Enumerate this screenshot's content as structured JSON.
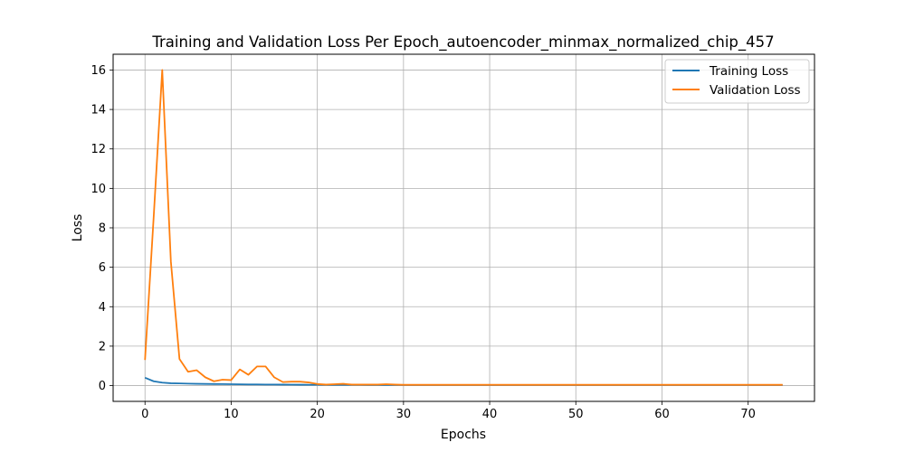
{
  "chart_data": {
    "type": "line",
    "title": "Training and Validation Loss Per Epoch_autoencoder_minmax_normalized_chip_457",
    "xlabel": "Epochs",
    "ylabel": "Loss",
    "xlim": [
      -3.7,
      77.7
    ],
    "ylim": [
      -0.8,
      16.8
    ],
    "xticks": [
      0,
      10,
      20,
      30,
      40,
      50,
      60,
      70
    ],
    "yticks": [
      0,
      2,
      4,
      6,
      8,
      10,
      12,
      14,
      16
    ],
    "grid": true,
    "legend_position": "top-right",
    "series": [
      {
        "name": "Training Loss",
        "color": "#1f77b4",
        "x": [
          0,
          1,
          2,
          3,
          4,
          5,
          6,
          7,
          8,
          9,
          10,
          11,
          12,
          13,
          14,
          15,
          16,
          17,
          18,
          19,
          20,
          21,
          22,
          23,
          24,
          25,
          26,
          27,
          28,
          29,
          30,
          31,
          32,
          33,
          34,
          35,
          36,
          37,
          38,
          39,
          40,
          41,
          42,
          43,
          44,
          45,
          46,
          47,
          48,
          49,
          50,
          51,
          52,
          53,
          54,
          55,
          56,
          57,
          58,
          59,
          60,
          61,
          62,
          63,
          64,
          65,
          66,
          67,
          68,
          69,
          70,
          71,
          72,
          73,
          74
        ],
        "values": [
          0.4,
          0.22,
          0.15,
          0.12,
          0.11,
          0.1,
          0.09,
          0.085,
          0.08,
          0.075,
          0.07,
          0.065,
          0.06,
          0.058,
          0.055,
          0.052,
          0.05,
          0.048,
          0.046,
          0.044,
          0.042,
          0.04,
          0.038,
          0.037,
          0.036,
          0.035,
          0.034,
          0.033,
          0.032,
          0.031,
          0.03,
          0.03,
          0.03,
          0.03,
          0.03,
          0.03,
          0.03,
          0.03,
          0.03,
          0.03,
          0.03,
          0.03,
          0.03,
          0.03,
          0.03,
          0.03,
          0.03,
          0.03,
          0.03,
          0.03,
          0.03,
          0.03,
          0.03,
          0.03,
          0.03,
          0.03,
          0.03,
          0.03,
          0.03,
          0.03,
          0.03,
          0.03,
          0.03,
          0.03,
          0.03,
          0.03,
          0.03,
          0.03,
          0.03,
          0.03,
          0.03,
          0.03,
          0.03,
          0.03,
          0.03
        ]
      },
      {
        "name": "Validation Loss",
        "color": "#ff7f0e",
        "x": [
          0,
          1,
          2,
          3,
          4,
          5,
          6,
          7,
          8,
          9,
          10,
          11,
          12,
          13,
          14,
          15,
          16,
          17,
          18,
          19,
          20,
          21,
          22,
          23,
          24,
          25,
          26,
          27,
          28,
          29,
          30,
          31,
          32,
          33,
          34,
          35,
          36,
          37,
          38,
          39,
          40,
          41,
          42,
          43,
          44,
          45,
          46,
          47,
          48,
          49,
          50,
          51,
          52,
          53,
          54,
          55,
          56,
          57,
          58,
          59,
          60,
          61,
          62,
          63,
          64,
          65,
          66,
          67,
          68,
          69,
          70,
          71,
          72,
          73,
          74
        ],
        "values": [
          1.3,
          8.5,
          16.0,
          6.3,
          1.35,
          0.7,
          0.78,
          0.42,
          0.22,
          0.3,
          0.28,
          0.82,
          0.55,
          0.97,
          0.97,
          0.42,
          0.18,
          0.2,
          0.2,
          0.16,
          0.08,
          0.05,
          0.07,
          0.09,
          0.05,
          0.05,
          0.05,
          0.05,
          0.07,
          0.05,
          0.04,
          0.04,
          0.04,
          0.04,
          0.04,
          0.04,
          0.04,
          0.04,
          0.04,
          0.04,
          0.04,
          0.04,
          0.04,
          0.04,
          0.04,
          0.04,
          0.04,
          0.04,
          0.04,
          0.04,
          0.04,
          0.04,
          0.04,
          0.04,
          0.04,
          0.04,
          0.04,
          0.04,
          0.04,
          0.04,
          0.04,
          0.04,
          0.04,
          0.04,
          0.04,
          0.04,
          0.04,
          0.04,
          0.04,
          0.04,
          0.04,
          0.04,
          0.04,
          0.04,
          0.04
        ]
      }
    ]
  }
}
